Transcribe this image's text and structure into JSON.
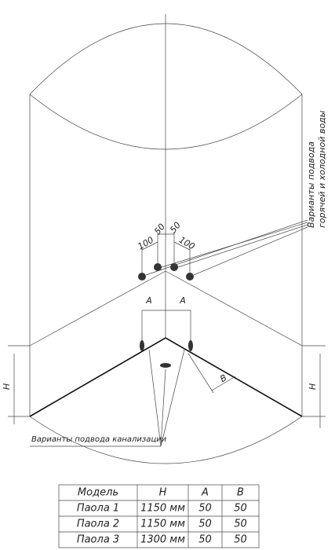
{
  "labels": {
    "water": [
      "Варианты подвода",
      "горячей и холодной воды"
    ],
    "drain": "Варианты подвода канализации"
  },
  "dimensions": {
    "upper": [
      "50",
      "50",
      "100",
      "100"
    ],
    "a": [
      "A",
      "A"
    ],
    "b": "B",
    "h": [
      "H",
      "H"
    ]
  },
  "table": {
    "header": [
      "Модель",
      "H",
      "A",
      "B"
    ],
    "rows": [
      [
        "Паола 1",
        "1150 мм",
        "50",
        "50"
      ],
      [
        "Паола 2",
        "1150 мм",
        "50",
        "50"
      ],
      [
        "Паола 3",
        "1300 мм",
        "50",
        "50"
      ]
    ]
  }
}
